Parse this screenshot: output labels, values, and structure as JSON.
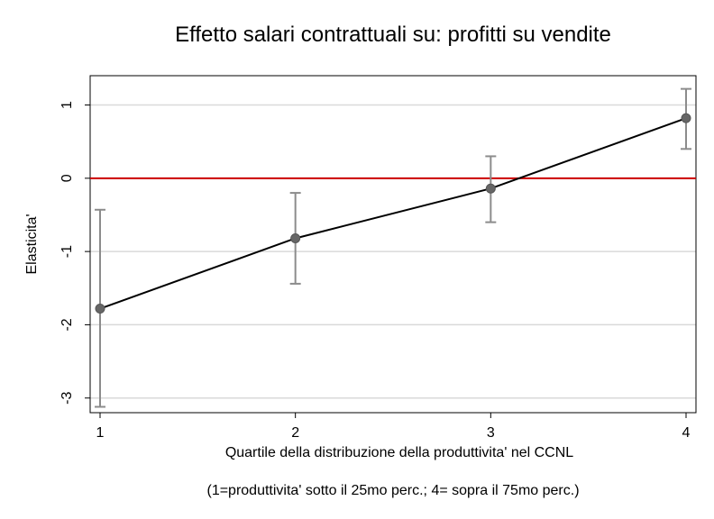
{
  "chart_data": {
    "type": "line",
    "title": "Effetto salari contrattuali su: profitti su vendite",
    "xlabel": "Quartile della distribuzione della produttivita' nel CCNL",
    "ylabel": "Elasticita'",
    "note": "(1=produttivita' sotto il 25mo perc.;  4= sopra il 75mo perc.)",
    "x": [
      1,
      2,
      3,
      4
    ],
    "x_ticks": [
      "1",
      "2",
      "3",
      "4"
    ],
    "xlim": [
      1,
      4
    ],
    "y_ticks": [
      "-3",
      "-2",
      "-1",
      "0",
      "1"
    ],
    "ylim": [
      -3.2,
      1.4
    ],
    "grid": true,
    "reference_line": {
      "y": 0,
      "color": "#cc0000"
    },
    "series": [
      {
        "values": [
          -1.78,
          -0.82,
          -0.14,
          0.82
        ],
        "lower": [
          -3.12,
          -1.44,
          -0.6,
          0.4
        ],
        "upper": [
          -0.43,
          -0.2,
          0.3,
          1.22
        ],
        "color": "#000000"
      }
    ],
    "colors": {
      "errorbar": "#8c8c8c",
      "marker": "#666666",
      "grid": "#d9d9d9"
    }
  }
}
